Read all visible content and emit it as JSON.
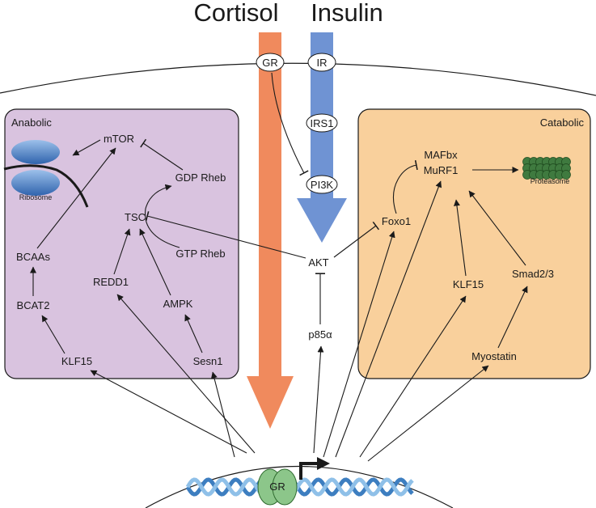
{
  "hormones": {
    "cortisol": "Cortisol",
    "insulin": "Insulin"
  },
  "receptors": {
    "gr": "GR",
    "ir": "IR",
    "irs1": "IRS1",
    "pi3k": "PI3K"
  },
  "panels": {
    "anabolic": "Anabolic",
    "catabolic": "Catabolic"
  },
  "anabolic_nodes": {
    "mtor": "mTOR",
    "ribosome": "Ribosome",
    "gdp_rheb": "GDP Rheb",
    "tsc": "TSC",
    "gtp_rheb": "GTP Rheb",
    "bcaas": "BCAAs",
    "redd1": "REDD1",
    "bcat2": "BCAT2",
    "ampk": "AMPK",
    "klf15": "KLF15",
    "sesn1": "Sesn1"
  },
  "center_nodes": {
    "akt": "AKT",
    "p85a": "p85α"
  },
  "catabolic_nodes": {
    "mafbx": "MAFbx",
    "murf1": "MuRF1",
    "proteasome": "Proteasome",
    "foxo1": "Foxo1",
    "klf15": "KLF15",
    "smad23": "Smad2/3",
    "myostatin": "Myostatin"
  },
  "nucleus": {
    "gr": "GR"
  },
  "colors": {
    "anabolic_panel": "#d9c3df",
    "catabolic_panel": "#f9d09c",
    "cortisol_arrow": "#f08a5d",
    "insulin_arrow": "#6f93d3",
    "ribosome": "#4a7fc4",
    "proteasome": "#3f7a3f",
    "gr_nucleus": "#8cc68a",
    "dna_1": "#3d7ec0",
    "dna_2": "#8fc0e8"
  }
}
